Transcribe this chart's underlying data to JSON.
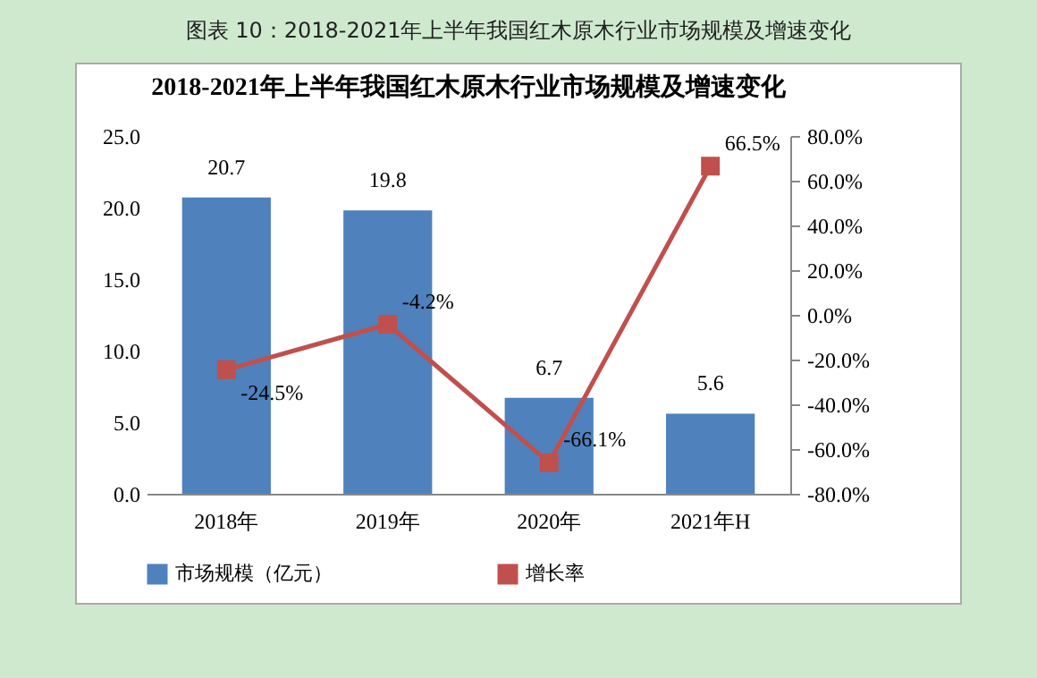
{
  "chart_data": {
    "type": "bar",
    "title": "2018-2021年上半年我国红木原木行业市场规模及增速变化",
    "annotations": [
      "图表  10：2018-2021年上半年我国红木原木行业市场规模及增速变化"
    ],
    "categories": [
      "2018年",
      "2019年",
      "2020年",
      "2021年H"
    ],
    "series": [
      {
        "name": "市场规模（亿元）",
        "color": "#4f81bd",
        "values": [
          20.7,
          19.8,
          6.7,
          5.6
        ],
        "data_labels": true
      },
      {
        "name": "增长率",
        "type": "line",
        "axis": "y2",
        "color": "#c0504d",
        "marker": "square",
        "values": [
          -24.5,
          -4.2,
          -66.1,
          66.5
        ],
        "value_labels": [
          "-24.5%",
          "-4.2%",
          "-66.1%",
          "66.5%"
        ]
      }
    ],
    "ylim": [
      0,
      25
    ],
    "yticks": [
      {
        "value": 0,
        "label": "0.0"
      },
      {
        "value": 5,
        "label": "5.0"
      },
      {
        "value": 10,
        "label": "10.0"
      },
      {
        "value": 15,
        "label": "15.0"
      },
      {
        "value": 20,
        "label": "20.0"
      },
      {
        "value": 25,
        "label": "25.0"
      }
    ],
    "y2lim": [
      -80,
      80
    ],
    "y2ticks": [
      {
        "value": -80,
        "label": "-80.0%"
      },
      {
        "value": -60,
        "label": "-60.0%"
      },
      {
        "value": -40,
        "label": "-40.0%"
      },
      {
        "value": -20,
        "label": "-20.0%"
      },
      {
        "value": 0,
        "label": "0.0%"
      },
      {
        "value": 20,
        "label": "20.0%"
      },
      {
        "value": 40,
        "label": "40.0%"
      },
      {
        "value": 60,
        "label": "60.0%"
      },
      {
        "value": 80,
        "label": "80.0%"
      }
    ],
    "legend": "bottom",
    "grid": false
  }
}
